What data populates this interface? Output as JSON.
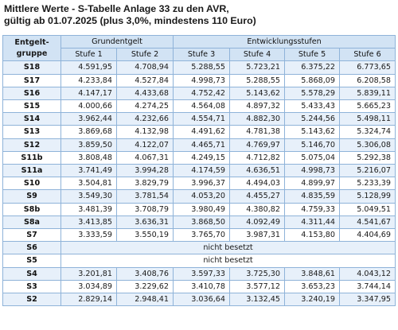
{
  "title": {
    "line1": "Mittlere Werte - S-Tabelle Anlage 33 zu den AVR,",
    "line2": "gültig ab 01.07.2025 (plus 3,0%, mindestens 110 Euro)"
  },
  "header": {
    "group_label_line1": "Entgelt-",
    "group_label_line2": "gruppe",
    "grundentgelt": "Grundentgelt",
    "entwicklungsstufen": "Entwicklungsstufen",
    "stufen": [
      "Stufe 1",
      "Stufe 2",
      "Stufe 3",
      "Stufe 4",
      "Stufe 5",
      "Stufe 6"
    ]
  },
  "rows": [
    {
      "group": "S18",
      "values": [
        "4.591,95",
        "4.708,94",
        "5.288,55",
        "5.723,21",
        "6.375,22",
        "6.773,65"
      ]
    },
    {
      "group": "S17",
      "values": [
        "4.233,84",
        "4.527,84",
        "4.998,73",
        "5.288,55",
        "5.868,09",
        "6.208,58"
      ]
    },
    {
      "group": "S16",
      "values": [
        "4.147,17",
        "4.433,68",
        "4.752,42",
        "5.143,62",
        "5.578,29",
        "5.839,11"
      ]
    },
    {
      "group": "S15",
      "values": [
        "4.000,66",
        "4.274,25",
        "4.564,08",
        "4.897,32",
        "5.433,43",
        "5.665,23"
      ]
    },
    {
      "group": "S14",
      "values": [
        "3.962,44",
        "4.232,66",
        "4.554,71",
        "4.882,30",
        "5.244,56",
        "5.498,11"
      ]
    },
    {
      "group": "S13",
      "values": [
        "3.869,68",
        "4.132,98",
        "4.491,62",
        "4.781,38",
        "5.143,62",
        "5.324,74"
      ]
    },
    {
      "group": "S12",
      "values": [
        "3.859,50",
        "4.122,07",
        "4.465,71",
        "4.769,97",
        "5.146,70",
        "5.306,08"
      ]
    },
    {
      "group": "S11b",
      "values": [
        "3.808,48",
        "4.067,31",
        "4.249,15",
        "4.712,82",
        "5.075,04",
        "5.292,38"
      ]
    },
    {
      "group": "S11a",
      "values": [
        "3.741,49",
        "3.994,28",
        "4.174,59",
        "4.636,51",
        "4.998,73",
        "5.216,07"
      ]
    },
    {
      "group": "S10",
      "values": [
        "3.504,81",
        "3.829,79",
        "3.996,37",
        "4.494,03",
        "4.899,97",
        "5.233,39"
      ]
    },
    {
      "group": "S9",
      "values": [
        "3.549,30",
        "3.781,54",
        "4.053,20",
        "4.455,27",
        "4.835,59",
        "5.128,99"
      ]
    },
    {
      "group": "S8b",
      "values": [
        "3.481,39",
        "3.708,79",
        "3.980,49",
        "4.380,82",
        "4.759,33",
        "5.049,51"
      ]
    },
    {
      "group": "S8a",
      "values": [
        "3.413,85",
        "3.636,31",
        "3.868,50",
        "4.092,49",
        "4.311,44",
        "4.541,67"
      ]
    },
    {
      "group": "S7",
      "values": [
        "3.333,59",
        "3.550,19",
        "3.765,70",
        "3.987,31",
        "4.153,80",
        "4.404,69"
      ]
    },
    {
      "group": "S6",
      "note": "nicht besetzt"
    },
    {
      "group": "S5",
      "note": "nicht besetzt"
    },
    {
      "group": "S4",
      "values": [
        "3.201,81",
        "3.408,76",
        "3.597,33",
        "3.725,30",
        "3.848,61",
        "4.043,12"
      ]
    },
    {
      "group": "S3",
      "values": [
        "3.034,89",
        "3.229,62",
        "3.410,78",
        "3.577,12",
        "3.653,23",
        "3.744,14"
      ]
    },
    {
      "group": "S2",
      "values": [
        "2.829,14",
        "2.948,41",
        "3.036,64",
        "3.132,45",
        "3.240,19",
        "3.347,95"
      ]
    }
  ]
}
